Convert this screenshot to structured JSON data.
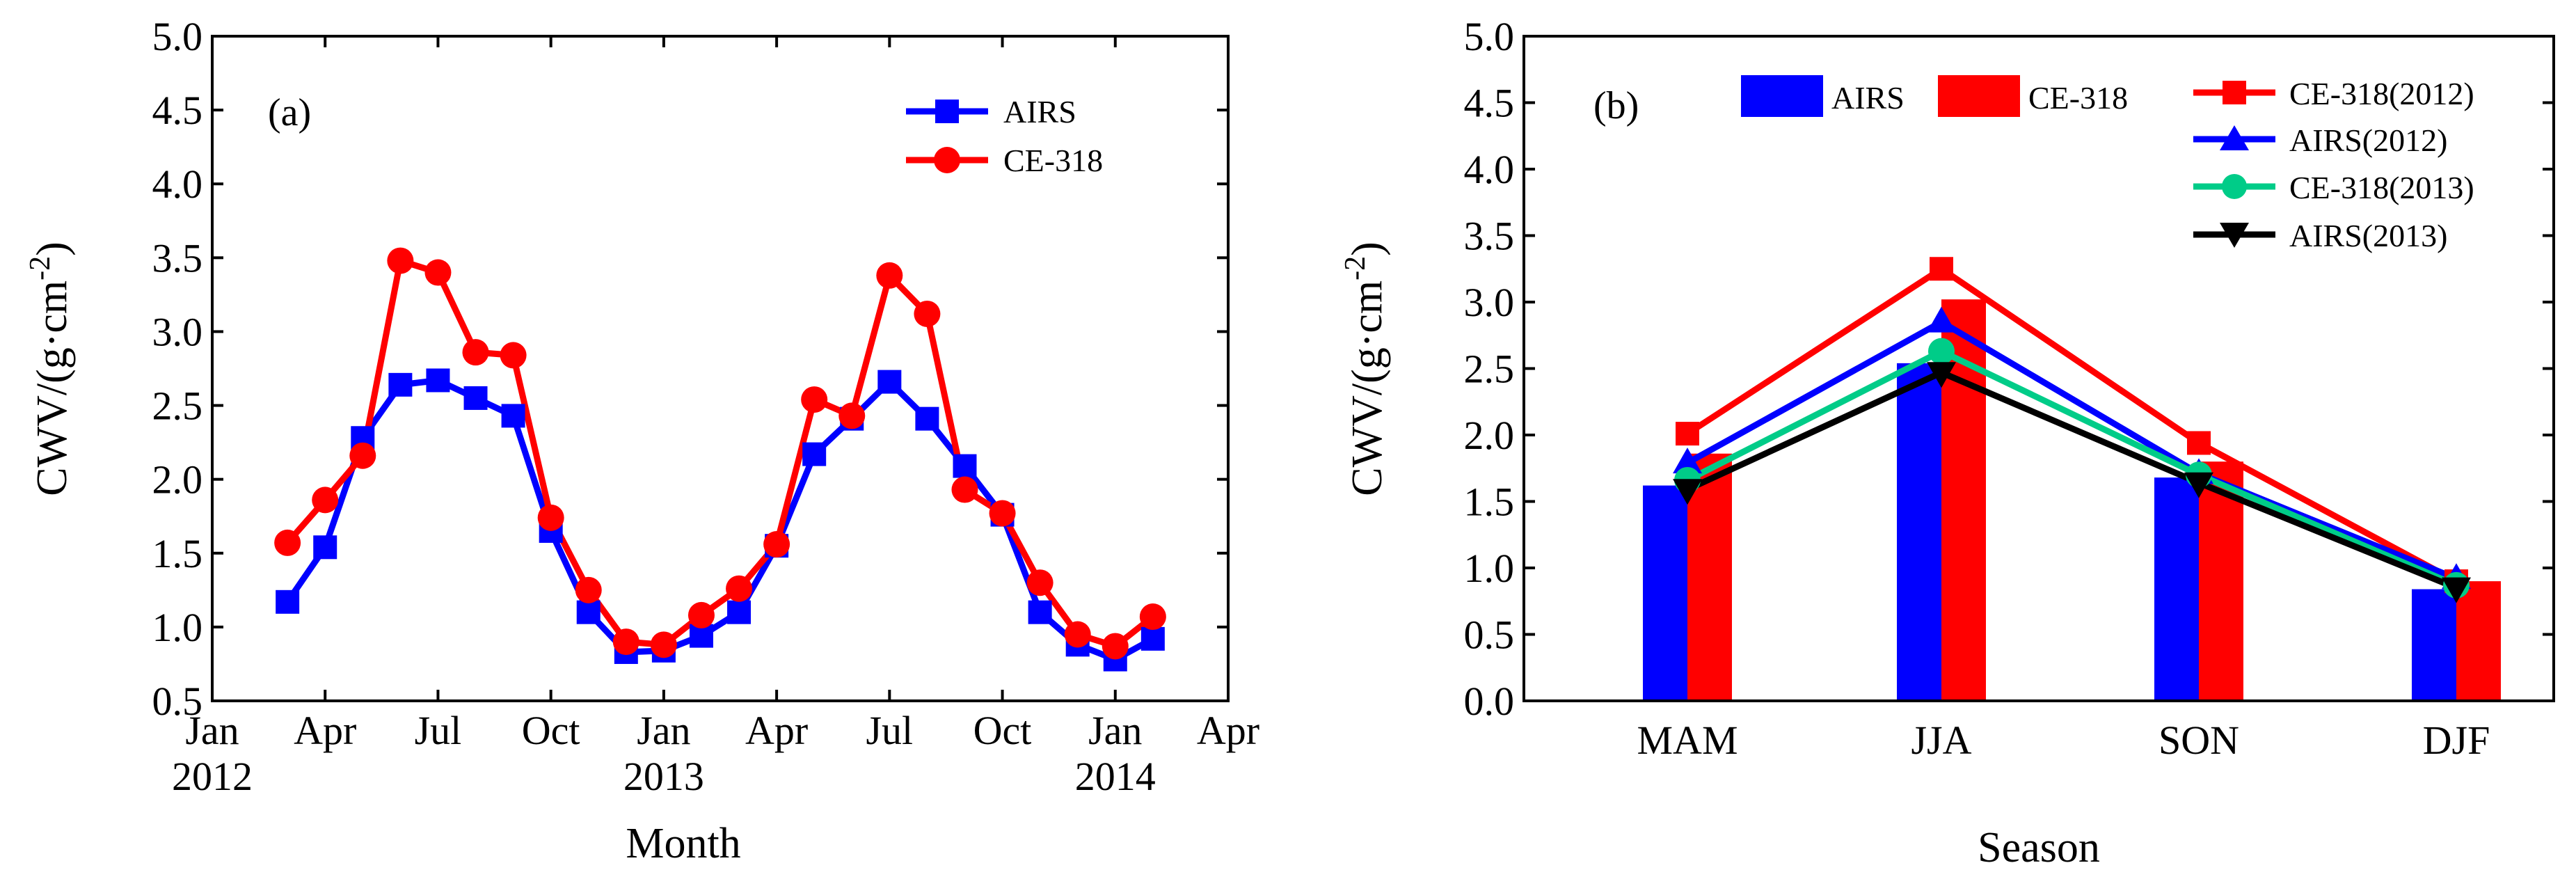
{
  "chart_data": [
    {
      "type": "line",
      "panel_label": "(a)",
      "xlabel": "Month",
      "ylabel_main": "CWV/(g·cm",
      "ylabel_sup": "-2",
      "ylabel_close": ")",
      "ylim": [
        0.5,
        5.0
      ],
      "yticks": [
        "0.5",
        "1.0",
        "1.5",
        "2.0",
        "2.5",
        "3.0",
        "3.5",
        "4.0",
        "4.5",
        "5.0"
      ],
      "xlim": [
        0,
        27
      ],
      "xticks": [
        {
          "v": 0,
          "month": "Jan",
          "year": "2012"
        },
        {
          "v": 3,
          "month": "Apr",
          "year": ""
        },
        {
          "v": 6,
          "month": "Jul",
          "year": ""
        },
        {
          "v": 9,
          "month": "Oct",
          "year": ""
        },
        {
          "v": 12,
          "month": "Jan",
          "year": "2013"
        },
        {
          "v": 15,
          "month": "Apr",
          "year": ""
        },
        {
          "v": 18,
          "month": "Jul",
          "year": ""
        },
        {
          "v": 21,
          "month": "Oct",
          "year": ""
        },
        {
          "v": 24,
          "month": "Jan",
          "year": "2014"
        },
        {
          "v": 27,
          "month": "Apr",
          "year": ""
        }
      ],
      "x": [
        2,
        3,
        4,
        5,
        6,
        7,
        8,
        9,
        10,
        11,
        12,
        13,
        14,
        15,
        16,
        17,
        18,
        19,
        20,
        21,
        22,
        23,
        24,
        25
      ],
      "series": [
        {
          "name": "AIRS",
          "color": "#0000ff",
          "marker": "square",
          "values": [
            1.17,
            1.54,
            2.28,
            2.64,
            2.67,
            2.55,
            2.43,
            1.65,
            1.1,
            0.83,
            0.84,
            0.94,
            1.1,
            1.55,
            2.17,
            2.41,
            2.66,
            2.41,
            2.09,
            1.76,
            1.1,
            0.88,
            0.78,
            0.92
          ]
        },
        {
          "name": "CE-318",
          "color": "#ff0000",
          "marker": "circle",
          "values": [
            1.57,
            1.86,
            2.16,
            3.48,
            3.4,
            2.86,
            2.84,
            1.74,
            1.25,
            0.9,
            0.88,
            1.08,
            1.26,
            1.56,
            2.54,
            2.43,
            3.38,
            3.12,
            1.93,
            1.77,
            1.3,
            0.95,
            0.87,
            1.07
          ]
        }
      ],
      "legend": {
        "position": "top-right",
        "entries": [
          "AIRS",
          "CE-318"
        ]
      }
    },
    {
      "type": "bar",
      "panel_label": "(b)",
      "xlabel": "Season",
      "ylabel_main": "CWV/(g·cm",
      "ylabel_sup": "-2",
      "ylabel_close": ")",
      "ylim": [
        0.0,
        5.0
      ],
      "yticks": [
        "0.0",
        "0.5",
        "1.0",
        "1.5",
        "2.0",
        "2.5",
        "3.0",
        "3.5",
        "4.0",
        "4.5",
        "5.0"
      ],
      "categories": [
        "MAM",
        "JJA",
        "SON",
        "DJF"
      ],
      "bars": [
        {
          "name": "AIRS",
          "color": "#0000ff",
          "values": [
            1.62,
            2.54,
            1.68,
            0.84
          ]
        },
        {
          "name": "CE-318",
          "color": "#ff0000",
          "values": [
            1.86,
            3.02,
            1.8,
            0.9
          ]
        }
      ],
      "series": [
        {
          "name": "CE-318(2012)",
          "color": "#ff0000",
          "marker": "square",
          "values": [
            2.01,
            3.25,
            1.94,
            0.9
          ]
        },
        {
          "name": "AIRS(2012)",
          "color": "#0000ff",
          "marker": "triangle-up",
          "values": [
            1.79,
            2.85,
            1.71,
            0.92
          ]
        },
        {
          "name": "CE-318(2013)",
          "color": "#00cc88",
          "marker": "circle",
          "values": [
            1.66,
            2.63,
            1.7,
            0.87
          ]
        },
        {
          "name": "AIRS(2013)",
          "color": "#000000",
          "marker": "triangle-down",
          "values": [
            1.59,
            2.47,
            1.64,
            0.85
          ]
        }
      ],
      "legend": {
        "position": "top",
        "bar_entries": [
          "AIRS",
          "CE-318"
        ],
        "line_entries": [
          "CE-318(2012)",
          "AIRS(2012)",
          "CE-318(2013)",
          "AIRS(2013)"
        ]
      }
    }
  ]
}
